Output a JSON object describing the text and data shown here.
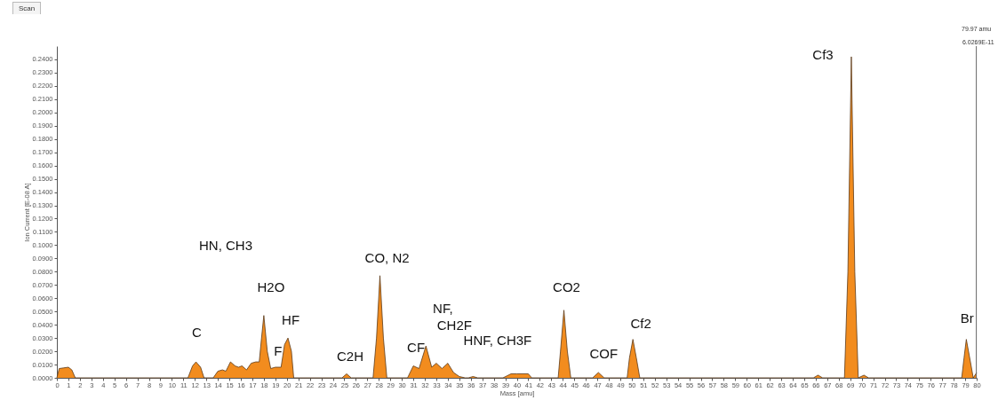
{
  "chart_data": {
    "type": "area",
    "xlabel": "Mass [amu]",
    "ylabel": "Ion Current [E-08 A]",
    "xlim": [
      0,
      80
    ],
    "ylim": [
      0,
      0.25
    ],
    "xticks": [
      0,
      1,
      2,
      3,
      4,
      5,
      6,
      7,
      8,
      9,
      10,
      11,
      12,
      13,
      14,
      15,
      16,
      17,
      18,
      19,
      20,
      21,
      22,
      23,
      24,
      25,
      26,
      27,
      28,
      29,
      30,
      31,
      32,
      33,
      34,
      35,
      36,
      37,
      38,
      39,
      40,
      41,
      42,
      43,
      44,
      45,
      46,
      47,
      48,
      49,
      50,
      51,
      52,
      53,
      54,
      55,
      56,
      57,
      58,
      59,
      60,
      61,
      62,
      63,
      64,
      65,
      66,
      67,
      68,
      69,
      70,
      71,
      72,
      73,
      74,
      75,
      76,
      77,
      78,
      79,
      80
    ],
    "yticks": [
      {
        "value": 0,
        "label": "0.0000"
      },
      {
        "value": 0.01,
        "label": "0.0100"
      },
      {
        "value": 0.02,
        "label": "0.0200"
      },
      {
        "value": 0.03,
        "label": "0.0300"
      },
      {
        "value": 0.04,
        "label": "0.0400"
      },
      {
        "value": 0.05,
        "label": "0.0500"
      },
      {
        "value": 0.06,
        "label": "0.0600"
      },
      {
        "value": 0.07,
        "label": "0.0700"
      },
      {
        "value": 0.08,
        "label": "0.0800"
      },
      {
        "value": 0.09,
        "label": "0.0900"
      },
      {
        "value": 0.1,
        "label": "0.1000"
      },
      {
        "value": 0.11,
        "label": "0.1100"
      },
      {
        "value": 0.12,
        "label": "0.1200"
      },
      {
        "value": 0.13,
        "label": "0.1300"
      },
      {
        "value": 0.14,
        "label": "0.1400"
      },
      {
        "value": 0.15,
        "label": "0.1500"
      },
      {
        "value": 0.16,
        "label": "0.1600"
      },
      {
        "value": 0.17,
        "label": "0.1700"
      },
      {
        "value": 0.18,
        "label": "0.1800"
      },
      {
        "value": 0.19,
        "label": "0.1900"
      },
      {
        "value": 0.2,
        "label": "0.2000"
      },
      {
        "value": 0.21,
        "label": "0.2100"
      },
      {
        "value": 0.22,
        "label": "0.2200"
      },
      {
        "value": 0.23,
        "label": "0.2300"
      },
      {
        "value": 0.24,
        "label": "0.2400"
      }
    ],
    "x": [
      0,
      0.2,
      0.6,
      1.0,
      1.3,
      1.6,
      11.4,
      11.8,
      12.1,
      12.5,
      12.8,
      13.6,
      14.0,
      14.4,
      14.7,
      15.1,
      15.5,
      15.8,
      16.1,
      16.5,
      16.9,
      17.3,
      17.6,
      17.8,
      18.0,
      18.3,
      18.6,
      19.0,
      19.5,
      19.8,
      20.1,
      20.4,
      20.6,
      24.8,
      25.2,
      25.6,
      27.5,
      27.8,
      28.1,
      28.4,
      28.7,
      30.5,
      31.0,
      31.5,
      32.1,
      32.6,
      33.0,
      33.5,
      34.0,
      34.5,
      35.0,
      35.5,
      35.8,
      36.2,
      36.6,
      38.8,
      39.5,
      40.0,
      40.5,
      41.0,
      41.3,
      43.6,
      43.8,
      44.1,
      44.4,
      44.7,
      46.6,
      47.1,
      47.6,
      49.6,
      49.8,
      50.1,
      50.4,
      50.7,
      52.5,
      65.8,
      66.2,
      66.6,
      68.5,
      68.8,
      69.1,
      69.4,
      69.7,
      70.2,
      70.6,
      78.7,
      78.9,
      79.1,
      79.5,
      79.7,
      80
    ],
    "series": [
      {
        "color": "#f28c1e",
        "values": [
          0,
          0.007,
          0.0075,
          0.008,
          0.006,
          0,
          0,
          0.009,
          0.012,
          0.008,
          0,
          0,
          0.005,
          0.006,
          0.005,
          0.012,
          0.009,
          0.008,
          0.009,
          0.006,
          0.011,
          0.012,
          0.012,
          0.03,
          0.047,
          0.02,
          0.007,
          0.008,
          0.008,
          0.025,
          0.03,
          0.02,
          0,
          0,
          0.003,
          0,
          0,
          0.03,
          0.077,
          0.03,
          0,
          0,
          0.009,
          0.007,
          0.024,
          0.008,
          0.011,
          0.007,
          0.011,
          0.004,
          0.001,
          0,
          0,
          0.001,
          0,
          0,
          0.003,
          0.003,
          0.003,
          0.003,
          0,
          0,
          0.02,
          0.051,
          0.02,
          0,
          0,
          0.004,
          0,
          0,
          0.015,
          0.029,
          0.015,
          0,
          0,
          0,
          0.002,
          0,
          0,
          0.08,
          0.242,
          0.08,
          0,
          0.002,
          0,
          0,
          0.015,
          0.029,
          0.01,
          0,
          0.004
        ]
      }
    ],
    "ref_lines": [
      {
        "axis": "x",
        "value": 79.97,
        "label": "79.97 amu",
        "color": "#666666"
      }
    ],
    "annotations": [
      "Scan",
      {
        "text": "6.0269E-11",
        "x": 79.97,
        "y": 0.246
      },
      {
        "text": "C",
        "x": 12.1,
        "y": 0.012
      },
      "HN, CH3",
      {
        "text": "H2O",
        "x": 18.0,
        "y": 0.047
      },
      {
        "text": "F",
        "x": 19.0,
        "y": 0.008
      },
      {
        "text": "HF",
        "x": 20.1,
        "y": 0.03
      },
      {
        "text": "C2H",
        "x": 25.2,
        "y": 0.003
      },
      {
        "text": "CO, N2",
        "x": 28.1,
        "y": 0.077
      },
      {
        "text": "CF",
        "x": 31.0,
        "y": 0.009
      },
      {
        "text": "NF,",
        "x": 32.1,
        "y": 0.024
      },
      {
        "text": "CH2F",
        "x": 32.1,
        "y": 0.024
      },
      {
        "text": "HNF, CH3F",
        "x": 34.0,
        "y": 0.011
      },
      {
        "text": "CO2",
        "x": 44.1,
        "y": 0.051
      },
      {
        "text": "COF",
        "x": 47.1,
        "y": 0.004
      },
      {
        "text": "Cf2",
        "x": 50.1,
        "y": 0.029
      },
      {
        "text": "Cf3",
        "x": 69.1,
        "y": 0.242
      },
      {
        "text": "Br",
        "x": 79.1,
        "y": 0.029
      }
    ],
    "grid": false,
    "legend": false
  }
}
